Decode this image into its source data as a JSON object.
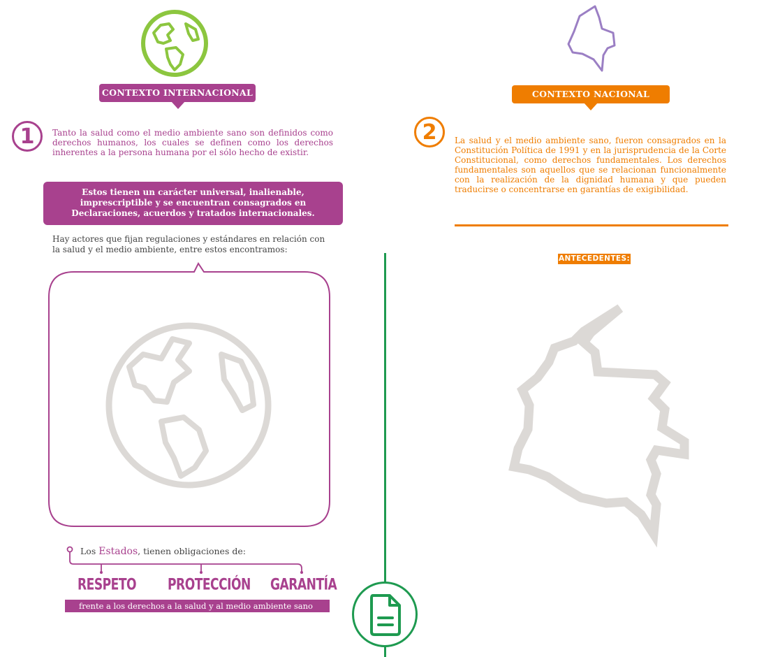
{
  "colors": {
    "purple": "#a8418e",
    "orange": "#ef7d00",
    "green_globe": "#8cc63f",
    "lavender": "#9b7fc4",
    "green_line": "#1e9a50",
    "gray_art": "#dcd9d6"
  },
  "icons": [
    "globe-icon",
    "colombia-map-icon",
    "document-icon"
  ],
  "international": {
    "badge": "CONTEXTO INTERNACIONAL",
    "number": "1",
    "intro": "Tanto la salud como el medio ambiente sano son definidos como derechos humanos, los cuales se definen como los derechos inherentes a la persona humana por el sólo hecho de existir.",
    "universal_box": "Estos tienen un carácter universal, inalienable, imprescriptible y se encuentran consagrados en Declaraciones, acuerdos y tratados internacionales.",
    "actors_text": "Hay actores que fijan regulaciones y estándares en relación con la salud y el medio ambiente, entre estos encontramos:",
    "states_prefix": "Los ",
    "states_highlight": "Estados",
    "states_suffix": ", tienen obligaciones de:",
    "obligations": [
      "RESPETO",
      "PROTECCIÓN",
      "GARANTÍA"
    ],
    "obligations_footer": "frente a los derechos a la salud y al medio ambiente sano"
  },
  "national": {
    "badge": "CONTEXTO NACIONAL",
    "number": "2",
    "intro": "La salud y el medio ambiente sano, fueron consagrados en la Constitución Política de 1991 y en la jurisprudencia de la Corte Constitucional, como derechos fundamentales. Los derechos fundamentales son aquellos que se relacionan funcionalmente con la realización de la dignidad humana y que pueden traducirse o concentrarse en garantías de exigibilidad.",
    "antecedentes_label": "ANTECEDENTES:"
  }
}
